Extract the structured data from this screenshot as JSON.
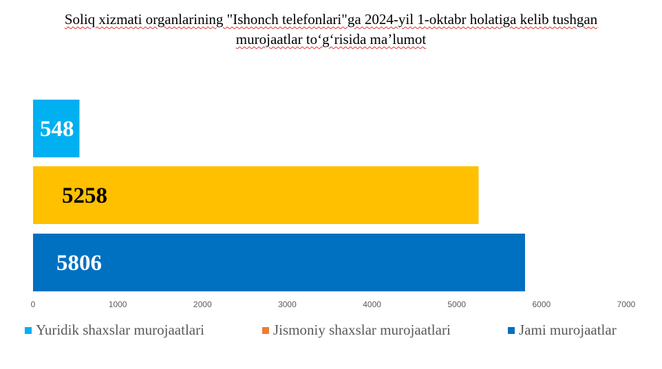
{
  "chart_data": {
    "type": "bar",
    "orientation": "horizontal",
    "title_lines": [
      "Soliq xizmati organlarining \"Ishonch telefonlari\"ga 2024-yil 1-oktabr holatiga kelib tushgan",
      "murojaatlar to‘g‘risida ma’lumot"
    ],
    "series": [
      {
        "name": "Yuridik shaxslar murojaatlari",
        "values": [
          548
        ],
        "color": "#00B0F0",
        "legend_color": "#00B0F0",
        "label_color": "#FFFFFF"
      },
      {
        "name": "Jismoniy shaxslar murojaatlari",
        "values": [
          5258
        ],
        "color": "#FFC000",
        "legend_color": "#ED7D31",
        "label_color": "#000000"
      },
      {
        "name": "Jami murojaatlar",
        "values": [
          5806
        ],
        "color": "#0070C0",
        "legend_color": "#0070C0",
        "label_color": "#FFFFFF"
      }
    ],
    "data_labels": [
      "548",
      "5258",
      "5806"
    ],
    "xlim": [
      0,
      7000
    ],
    "xticks": [
      "0",
      "1000",
      "2000",
      "3000",
      "4000",
      "5000",
      "6000",
      "7000"
    ],
    "grid": false,
    "legend_position": "bottom"
  }
}
